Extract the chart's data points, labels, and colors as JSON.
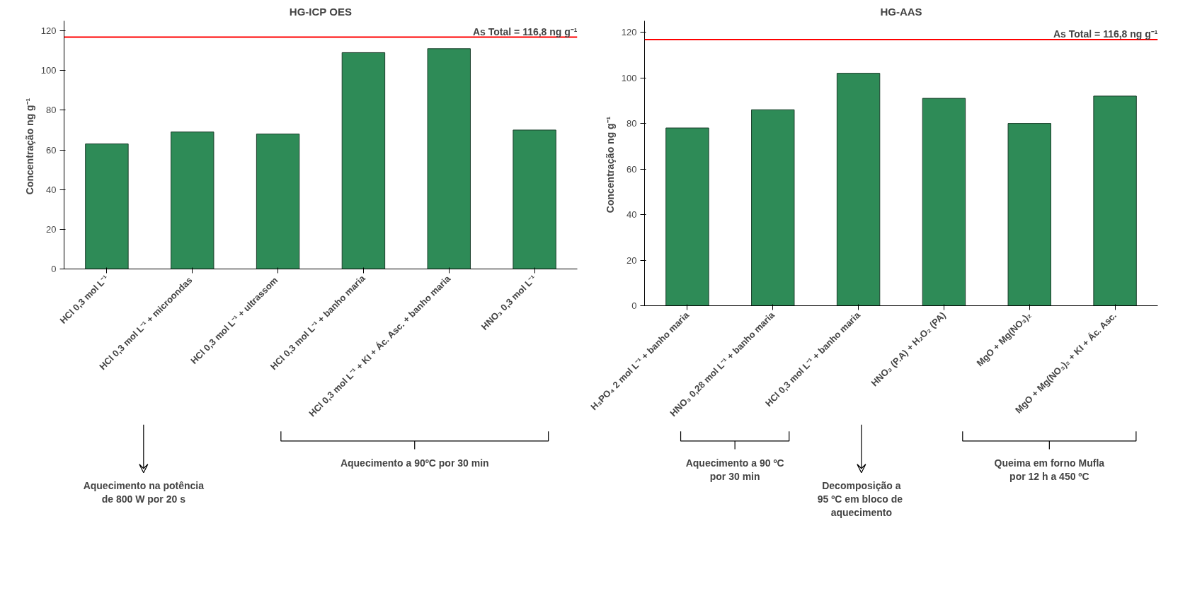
{
  "chart_data": [
    {
      "type": "bar",
      "title": "HG-ICP OES",
      "ylabel": "Concentração  ng g⁻¹",
      "categories": [
        "HCl 0,3 mol L⁻¹",
        "HCl 0,3 mol L⁻¹  + microondas",
        "HCl 0,3 mol L⁻¹  + ultrassom",
        "HCl 0,3 mol L⁻¹ + banho maria",
        "HCl 0,3 mol L⁻¹ + KI + Ác. Asc. + banho maria",
        "HNO₃ 0,3 mol L⁻¹"
      ],
      "values": [
        63,
        69,
        68,
        109,
        111,
        70
      ],
      "color": "#2e8b57",
      "ylim": [
        0,
        125
      ],
      "yticks": [
        0,
        20,
        40,
        60,
        80,
        100,
        120
      ],
      "grid": false,
      "ref_lines": [
        {
          "axis": "y",
          "value": 116.8,
          "label": "As Total = 116,8 ng g⁻¹",
          "color": "#ff0000"
        }
      ],
      "annotations": [
        "Aquecimento na potência\nde 800 W por 20 s",
        "Aquecimento a 90ºC por 30 min"
      ]
    },
    {
      "type": "bar",
      "title": "HG-AAS",
      "ylabel": "Concentração  ng g⁻¹",
      "categories": [
        "H₃PO₄ 2 mol L⁻¹ + banho maria",
        "HNO₃ 0,28 mol L⁻¹ + banho maria",
        "HCl 0,3 mol L⁻¹ + banho maria",
        "HNO₃ (P.A) + H₂O₂ (PA)",
        "MgO + Mg(NO₃)₂",
        "MgO + Mg(NO₃)₂ + KI + Ác. Asc."
      ],
      "values": [
        78,
        86,
        102,
        91,
        80,
        92
      ],
      "color": "#2e8b57",
      "ylim": [
        0,
        125
      ],
      "yticks": [
        0,
        20,
        40,
        60,
        80,
        100,
        120
      ],
      "grid": false,
      "ref_lines": [
        {
          "axis": "y",
          "value": 116.8,
          "label": "As Total = 116,8 ng g⁻¹",
          "color": "#ff0000"
        }
      ],
      "annotations": [
        "Aquecimento a 90 ºC\npor 30 min",
        "Decomposição a\n95 ºC  em bloco de\naquecimento",
        "Queima em forno Mufla\npor 12 h a 450 ºC"
      ]
    }
  ]
}
